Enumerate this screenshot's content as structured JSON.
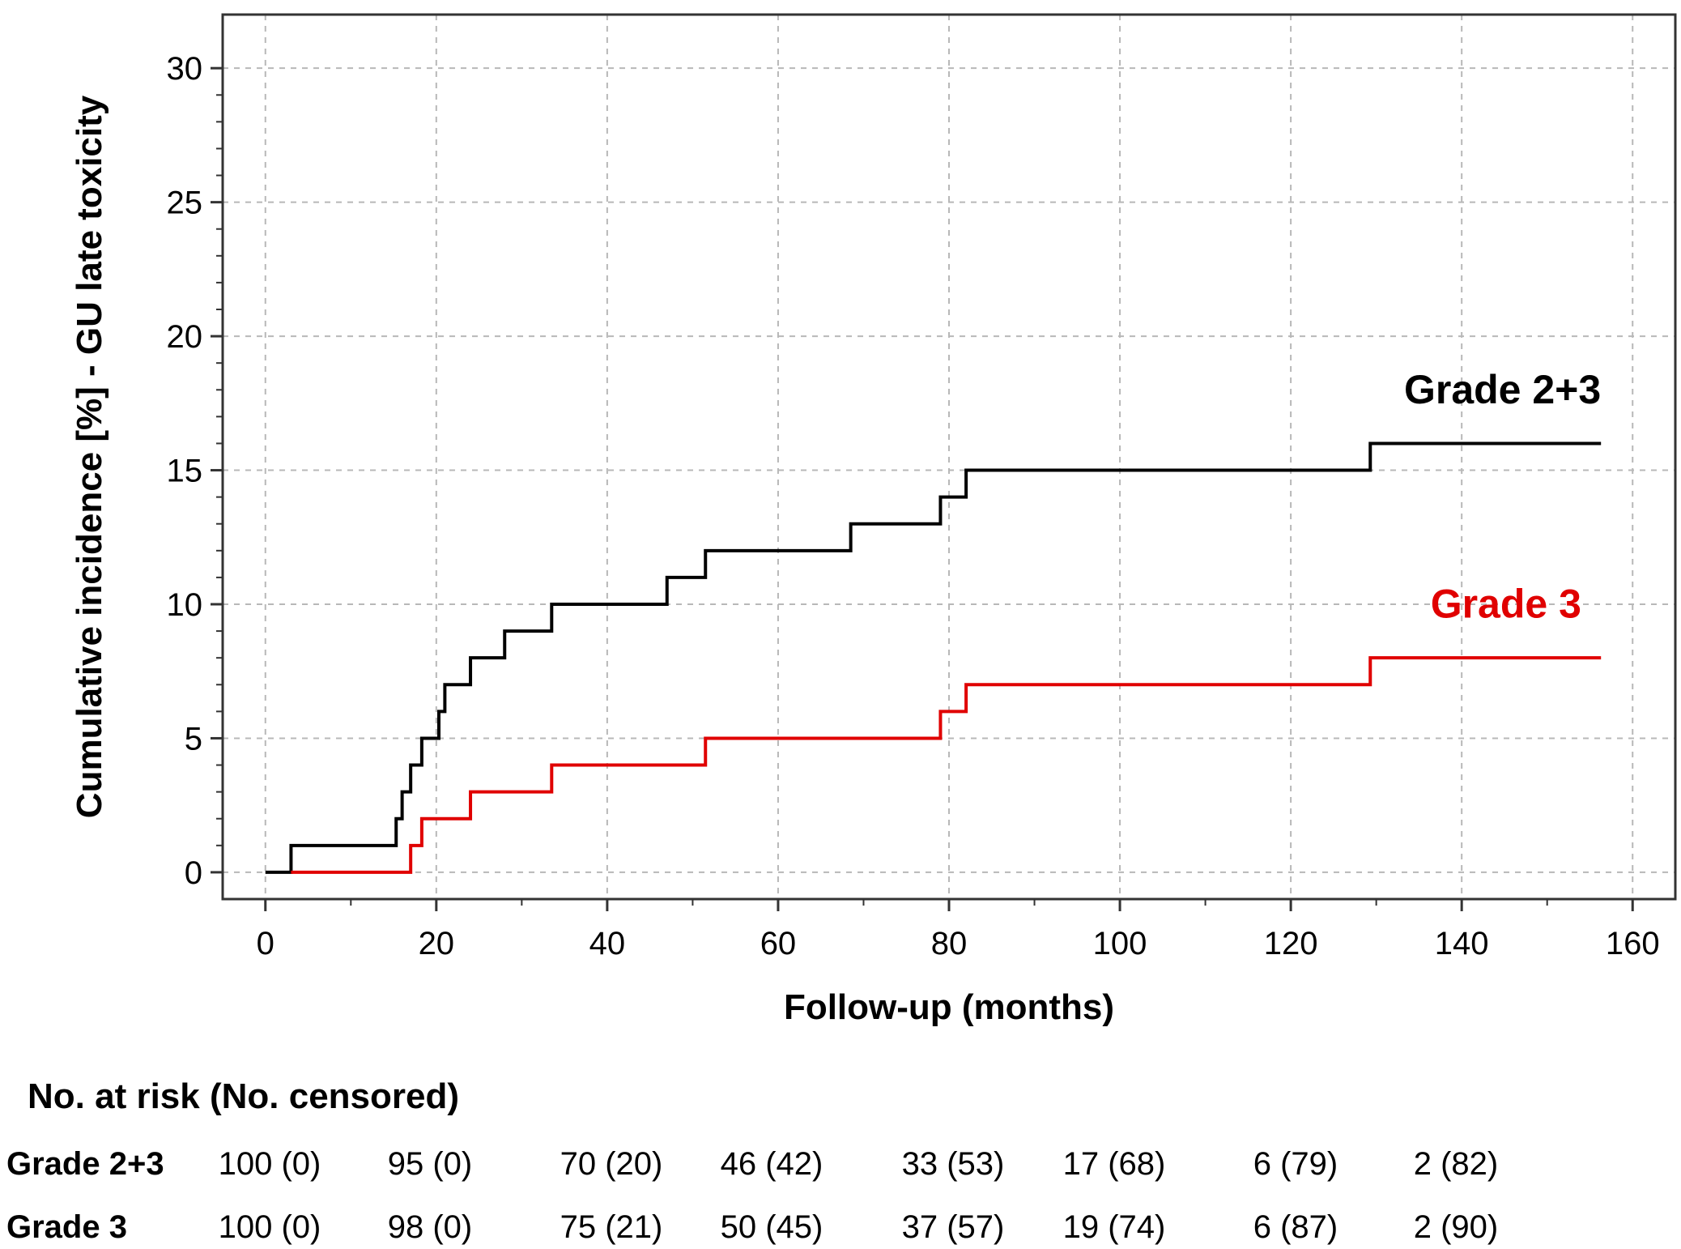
{
  "chart_data": {
    "type": "line",
    "subtype": "step (cumulative incidence)",
    "title": "",
    "xlabel": "Follow-up (months)",
    "ylabel": "Cumulative incidence [%] - GU late toxicity",
    "xlim": [
      -5,
      165
    ],
    "ylim": [
      -1,
      32
    ],
    "x_ticks": [
      0,
      20,
      40,
      60,
      80,
      100,
      120,
      140,
      160
    ],
    "y_ticks": [
      0,
      5,
      10,
      15,
      20,
      25,
      30
    ],
    "grid": true,
    "series": [
      {
        "name": "Grade 2+3",
        "color": "#000000",
        "points": [
          [
            0,
            0
          ],
          [
            3,
            1
          ],
          [
            15.3,
            2
          ],
          [
            16,
            3
          ],
          [
            17,
            4
          ],
          [
            18.3,
            5
          ],
          [
            20.3,
            6
          ],
          [
            21,
            7
          ],
          [
            24,
            8
          ],
          [
            28,
            9
          ],
          [
            33.5,
            10
          ],
          [
            47,
            11
          ],
          [
            51.5,
            12
          ],
          [
            68.5,
            13
          ],
          [
            79,
            14
          ],
          [
            82,
            15
          ],
          [
            129.3,
            16
          ],
          [
            156.3,
            16
          ]
        ]
      },
      {
        "name": "Grade 3",
        "color": "#e00000",
        "points": [
          [
            3,
            0
          ],
          [
            17,
            1
          ],
          [
            18.3,
            2
          ],
          [
            24,
            3
          ],
          [
            33.5,
            4
          ],
          [
            51.5,
            5
          ],
          [
            79,
            6
          ],
          [
            82,
            7
          ],
          [
            129.3,
            8
          ],
          [
            156.3,
            8
          ]
        ]
      }
    ],
    "annotations": [
      {
        "text": "Grade 2+3",
        "color": "#000000"
      },
      {
        "text": "Grade 3",
        "color": "#e00000"
      }
    ]
  },
  "risk_table": {
    "title": "No. at risk (No. censored)",
    "rows": [
      {
        "label": "Grade 2+3",
        "values": [
          "100 (0)",
          "95 (0)",
          "70 (20)",
          "46 (42)",
          "33 (53)",
          "17 (68)",
          "6 (79)",
          "2 (82)"
        ]
      },
      {
        "label": "Grade 3",
        "values": [
          "100 (0)",
          "98 (0)",
          "75 (21)",
          "50 (45)",
          "37 (57)",
          "19 (74)",
          "6 (87)",
          "2 (90)"
        ]
      }
    ]
  }
}
